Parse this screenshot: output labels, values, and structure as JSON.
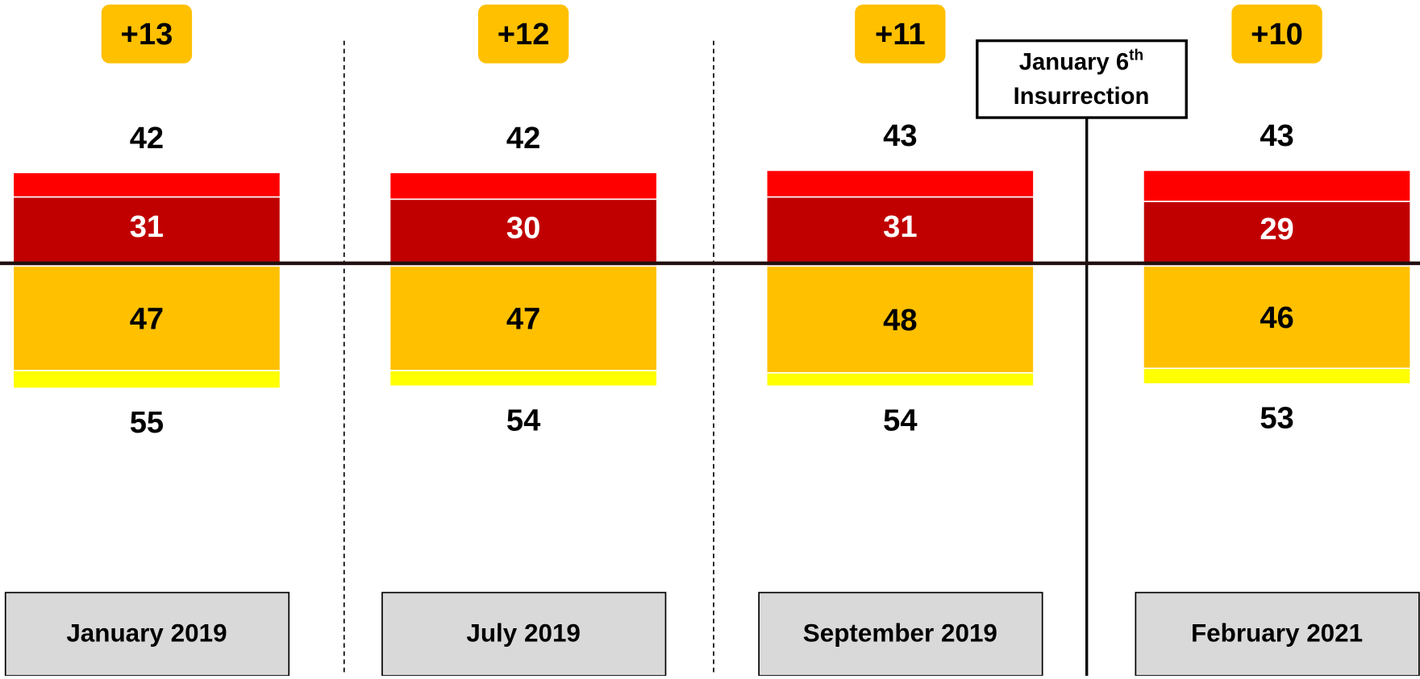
{
  "chart_data": {
    "type": "diverging-bar",
    "categories": [
      "January 2019",
      "July 2019",
      "September 2019",
      "February 2021"
    ],
    "net_labels": [
      "+13",
      "+12",
      "+11",
      "+10"
    ],
    "series": [
      {
        "color": "#ff0000",
        "side": "up",
        "values": [
          42,
          42,
          43,
          43
        ]
      },
      {
        "color": "#c00000",
        "side": "up",
        "values": [
          31,
          30,
          31,
          29
        ]
      },
      {
        "color": "#ffff00",
        "side": "down",
        "values": [
          55,
          54,
          54,
          53
        ]
      },
      {
        "color": "#ffc000",
        "side": "down",
        "values": [
          47,
          47,
          48,
          46
        ]
      }
    ],
    "annotation": {
      "text": "January 6",
      "sup": "th",
      "line2": "Insurrection"
    }
  }
}
